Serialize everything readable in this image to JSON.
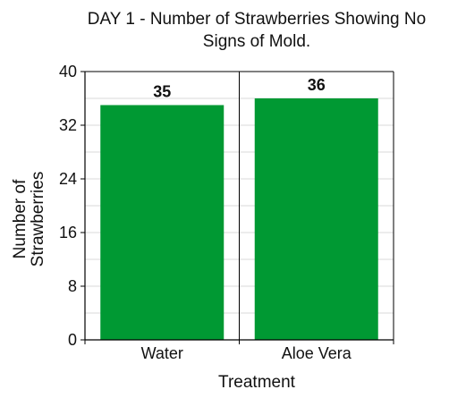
{
  "chart_data": {
    "type": "bar",
    "title": "DAY 1 - Number of Strawberries Showing No Signs of Mold.",
    "title_lines": [
      "DAY 1 - Number of Strawberries Showing No",
      "Signs of Mold."
    ],
    "xlabel": "Treatment",
    "ylabel": "Number of Strawberries",
    "ylabel_lines": [
      "Number of",
      "Strawberries"
    ],
    "categories": [
      "Water",
      "Aloe Vera"
    ],
    "values": [
      35,
      36
    ],
    "data_labels": [
      "35",
      "36"
    ],
    "ylim": [
      0,
      40
    ],
    "yticks": [
      0,
      8,
      16,
      24,
      32,
      40
    ],
    "ytick_labels": [
      "0",
      "8",
      "16",
      "24",
      "32",
      "40"
    ],
    "grid": true,
    "legend": "none",
    "bar_color": "#009933",
    "grid_color": "#d9d9d9",
    "axis_color": "#000000"
  }
}
